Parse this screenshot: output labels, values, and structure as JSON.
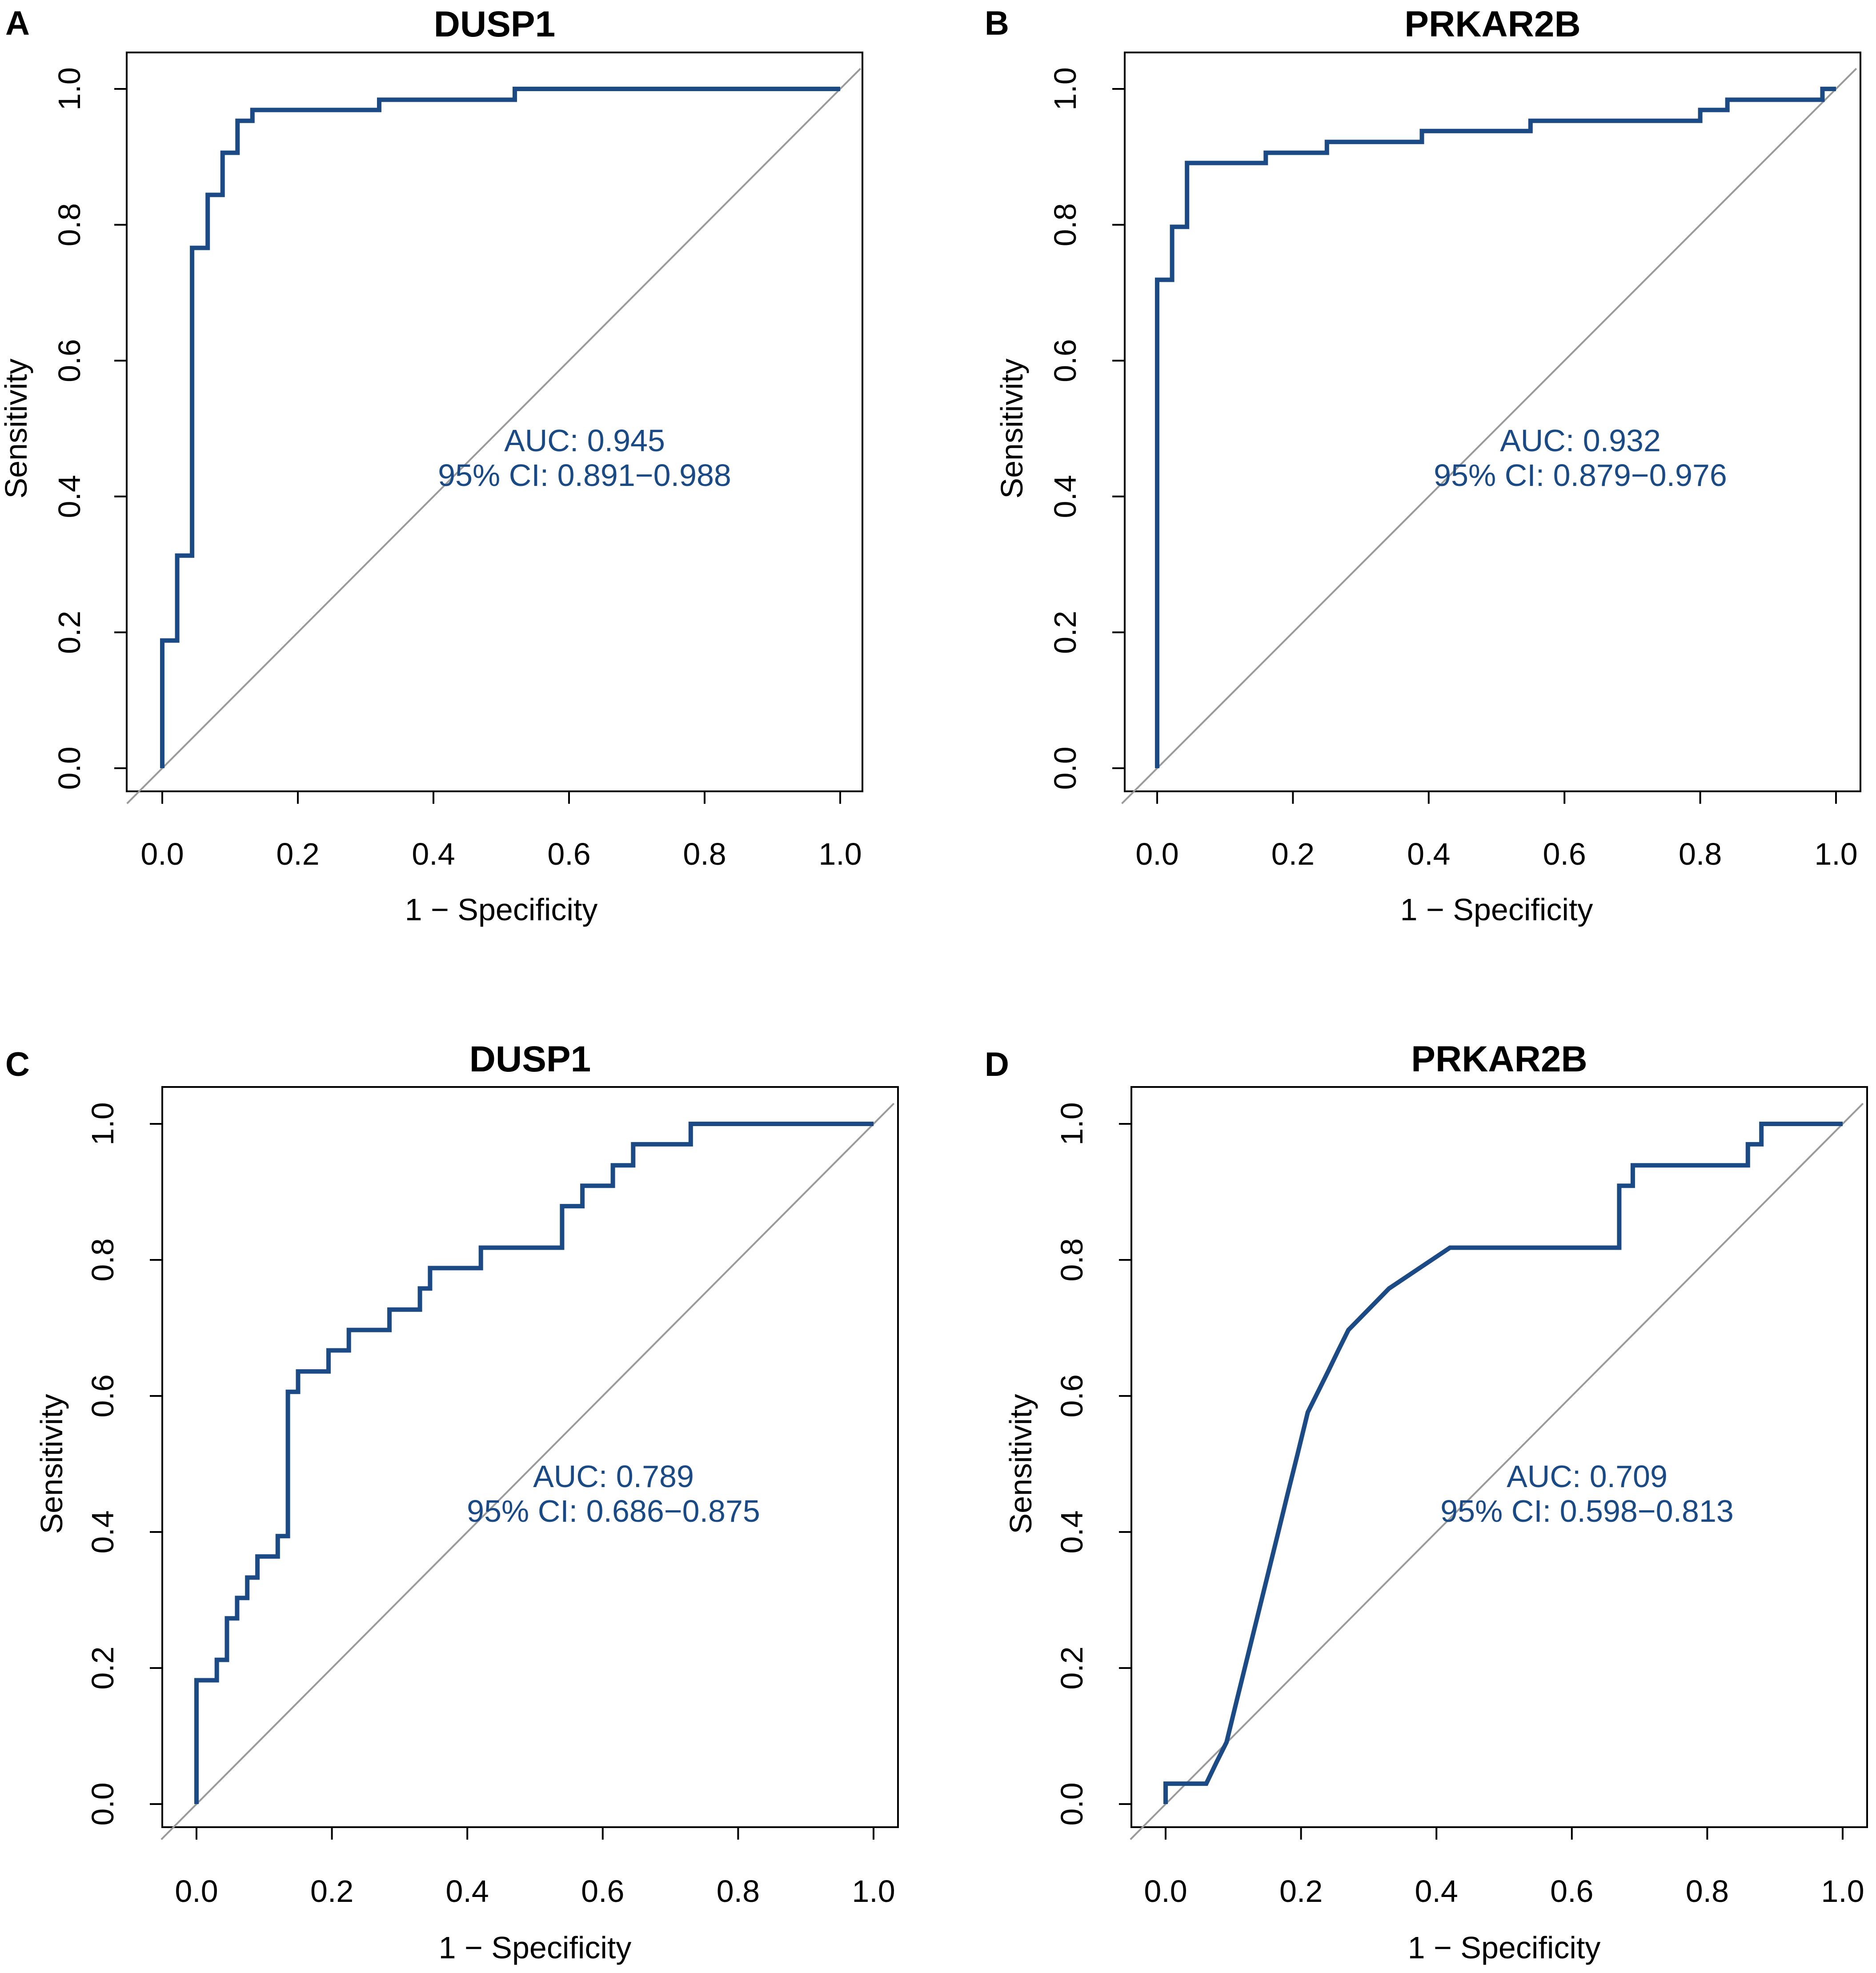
{
  "figure": {
    "colors": {
      "roc": "#1b4a85",
      "text_accent": "#1a4a85",
      "diagonal": "#9a9a9a",
      "frame": "#000000"
    }
  },
  "chart_data": [
    {
      "panel": "A",
      "type": "line",
      "title": "DUSP1",
      "xlabel": "1 − Specificity",
      "ylabel": "Sensitivity",
      "xlim": [
        0,
        1
      ],
      "ylim": [
        0,
        1
      ],
      "xticks": [
        "0.0",
        "0.2",
        "0.4",
        "0.6",
        "0.8",
        "1.0"
      ],
      "yticks": [
        "0.0",
        "0.2",
        "0.4",
        "0.6",
        "0.8",
        "1.0"
      ],
      "auc_text": "AUC: 0.945",
      "ci_text": "95% CI: 0.891−0.988",
      "series": [
        {
          "name": "ROC",
          "x": [
            0,
            0,
            0.022,
            0.022,
            0.044,
            0.044,
            0.067,
            0.067,
            0.089,
            0.089,
            0.111,
            0.111,
            0.133,
            0.133,
            0.32,
            0.32,
            0.52,
            0.52,
            1.0
          ],
          "y": [
            0,
            0.188,
            0.188,
            0.313,
            0.313,
            0.766,
            0.766,
            0.844,
            0.844,
            0.906,
            0.906,
            0.953,
            0.953,
            0.969,
            0.969,
            0.984,
            0.984,
            1.0,
            1.0
          ]
        }
      ]
    },
    {
      "panel": "B",
      "type": "line",
      "title": "PRKAR2B",
      "xlabel": "1 − Specificity",
      "ylabel": "Sensitivity",
      "xlim": [
        0,
        1
      ],
      "ylim": [
        0,
        1
      ],
      "xticks": [
        "0.0",
        "0.2",
        "0.4",
        "0.6",
        "0.8",
        "1.0"
      ],
      "yticks": [
        "0.0",
        "0.2",
        "0.4",
        "0.6",
        "0.8",
        "1.0"
      ],
      "auc_text": "AUC: 0.932",
      "ci_text": "95% CI: 0.879−0.976",
      "series": [
        {
          "name": "ROC",
          "x": [
            0,
            0,
            0.022,
            0.022,
            0.044,
            0.044,
            0.16,
            0.16,
            0.25,
            0.25,
            0.39,
            0.39,
            0.55,
            0.55,
            0.8,
            0.8,
            0.84,
            0.84,
            0.98,
            0.98,
            1.0
          ],
          "y": [
            0,
            0.719,
            0.719,
            0.797,
            0.797,
            0.891,
            0.891,
            0.906,
            0.906,
            0.922,
            0.922,
            0.938,
            0.938,
            0.953,
            0.953,
            0.969,
            0.969,
            0.984,
            0.984,
            1.0,
            1.0
          ]
        }
      ]
    },
    {
      "panel": "C",
      "type": "line",
      "title": "DUSP1",
      "xlabel": "1 − Specificity",
      "ylabel": "Sensitivity",
      "xlim": [
        0,
        1
      ],
      "ylim": [
        0,
        1
      ],
      "xticks": [
        "0.0",
        "0.2",
        "0.4",
        "0.6",
        "0.8",
        "1.0"
      ],
      "yticks": [
        "0.0",
        "0.2",
        "0.4",
        "0.6",
        "0.8",
        "1.0"
      ],
      "auc_text": "AUC: 0.789",
      "ci_text": "95% CI: 0.686−0.875",
      "series": [
        {
          "name": "ROC",
          "x": [
            0,
            0,
            0.03,
            0.03,
            0.045,
            0.045,
            0.06,
            0.06,
            0.075,
            0.075,
            0.09,
            0.09,
            0.12,
            0.12,
            0.135,
            0.135,
            0.15,
            0.15,
            0.195,
            0.195,
            0.225,
            0.225,
            0.285,
            0.285,
            0.33,
            0.33,
            0.345,
            0.345,
            0.42,
            0.42,
            0.54,
            0.54,
            0.57,
            0.57,
            0.615,
            0.615,
            0.645,
            0.645,
            0.73,
            0.73,
            1.0
          ],
          "y": [
            0,
            0.182,
            0.182,
            0.212,
            0.212,
            0.273,
            0.273,
            0.303,
            0.303,
            0.333,
            0.333,
            0.364,
            0.364,
            0.394,
            0.394,
            0.606,
            0.606,
            0.636,
            0.636,
            0.667,
            0.667,
            0.697,
            0.697,
            0.727,
            0.727,
            0.758,
            0.758,
            0.788,
            0.788,
            0.818,
            0.818,
            0.879,
            0.879,
            0.909,
            0.909,
            0.939,
            0.939,
            0.97,
            0.97,
            1.0,
            1.0
          ]
        }
      ]
    },
    {
      "panel": "D",
      "type": "line",
      "title": "PRKAR2B",
      "xlabel": "1 − Specificity",
      "ylabel": "Sensitivity",
      "xlim": [
        0,
        1
      ],
      "ylim": [
        0,
        1
      ],
      "xticks": [
        "0.0",
        "0.2",
        "0.4",
        "0.6",
        "0.8",
        "1.0"
      ],
      "yticks": [
        "0.0",
        "0.2",
        "0.4",
        "0.6",
        "0.8",
        "1.0"
      ],
      "auc_text": "AUC: 0.709",
      "ci_text": "95% CI: 0.598−0.813",
      "series": [
        {
          "name": "ROC",
          "x": [
            0,
            0,
            0.06,
            0.075,
            0.075,
            0.09,
            0.09,
            0.105,
            0.105,
            0.135,
            0.135,
            0.165,
            0.165,
            0.18,
            0.18,
            0.195,
            0.195,
            0.21,
            0.21,
            0.225,
            0.225,
            0.24,
            0.24,
            0.255,
            0.255,
            0.27,
            0.27,
            0.33,
            0.33,
            0.375,
            0.375,
            0.42,
            0.42,
            0.67,
            0.67,
            0.69,
            0.69,
            0.86,
            0.86,
            0.88,
            0.88,
            1.0
          ],
          "y": [
            0,
            0.03,
            0.03,
            0.061,
            0.061,
            0.091,
            0.091,
            0.152,
            0.152,
            0.273,
            0.273,
            0.394,
            0.394,
            0.455,
            0.455,
            0.515,
            0.515,
            0.576,
            0.576,
            0.606,
            0.606,
            0.636,
            0.636,
            0.667,
            0.667,
            0.697,
            0.697,
            0.758,
            0.758,
            0.788,
            0.788,
            0.818,
            0.818,
            0.818,
            0.909,
            0.909,
            0.939,
            0.939,
            0.97,
            0.97,
            1.0,
            1.0
          ]
        }
      ]
    }
  ]
}
